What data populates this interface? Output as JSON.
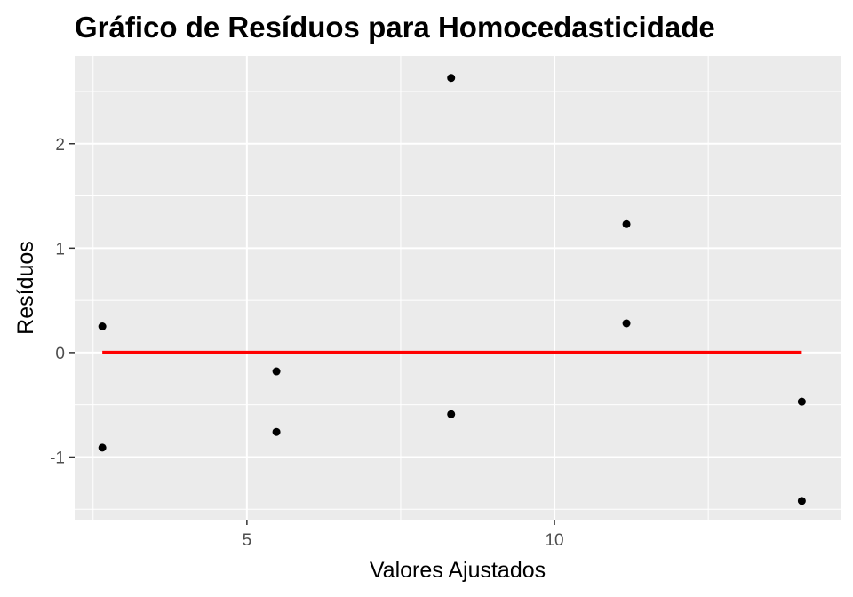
{
  "chart_data": {
    "type": "scatter",
    "title": "Gráfico de Resíduos para Homocedasticidade",
    "xlabel": "Valores Ajustados",
    "ylabel": "Resíduos",
    "xlim": [
      2.2,
      14.65
    ],
    "ylim": [
      -1.6,
      2.84
    ],
    "x_ticks": [
      5,
      10
    ],
    "x_tick_labels": [
      "5",
      "10"
    ],
    "y_ticks": [
      -1,
      0,
      1,
      2
    ],
    "y_tick_labels": [
      "-1",
      "0",
      "1",
      "2"
    ],
    "grid": true,
    "points": [
      {
        "x": 2.65,
        "y": 0.25
      },
      {
        "x": 2.65,
        "y": -0.91
      },
      {
        "x": 5.48,
        "y": -0.18
      },
      {
        "x": 5.48,
        "y": -0.76
      },
      {
        "x": 8.32,
        "y": 2.63
      },
      {
        "x": 8.32,
        "y": -0.59
      },
      {
        "x": 11.17,
        "y": 1.23
      },
      {
        "x": 11.17,
        "y": 0.28
      },
      {
        "x": 14.02,
        "y": -0.47
      },
      {
        "x": 14.02,
        "y": -1.42
      }
    ],
    "reference_line": {
      "y": 0,
      "x_start": 2.65,
      "x_end": 14.02,
      "color": "#ff0000"
    },
    "colors": {
      "panel": "#ebebeb",
      "grid": "#ffffff",
      "points": "#000000"
    }
  }
}
